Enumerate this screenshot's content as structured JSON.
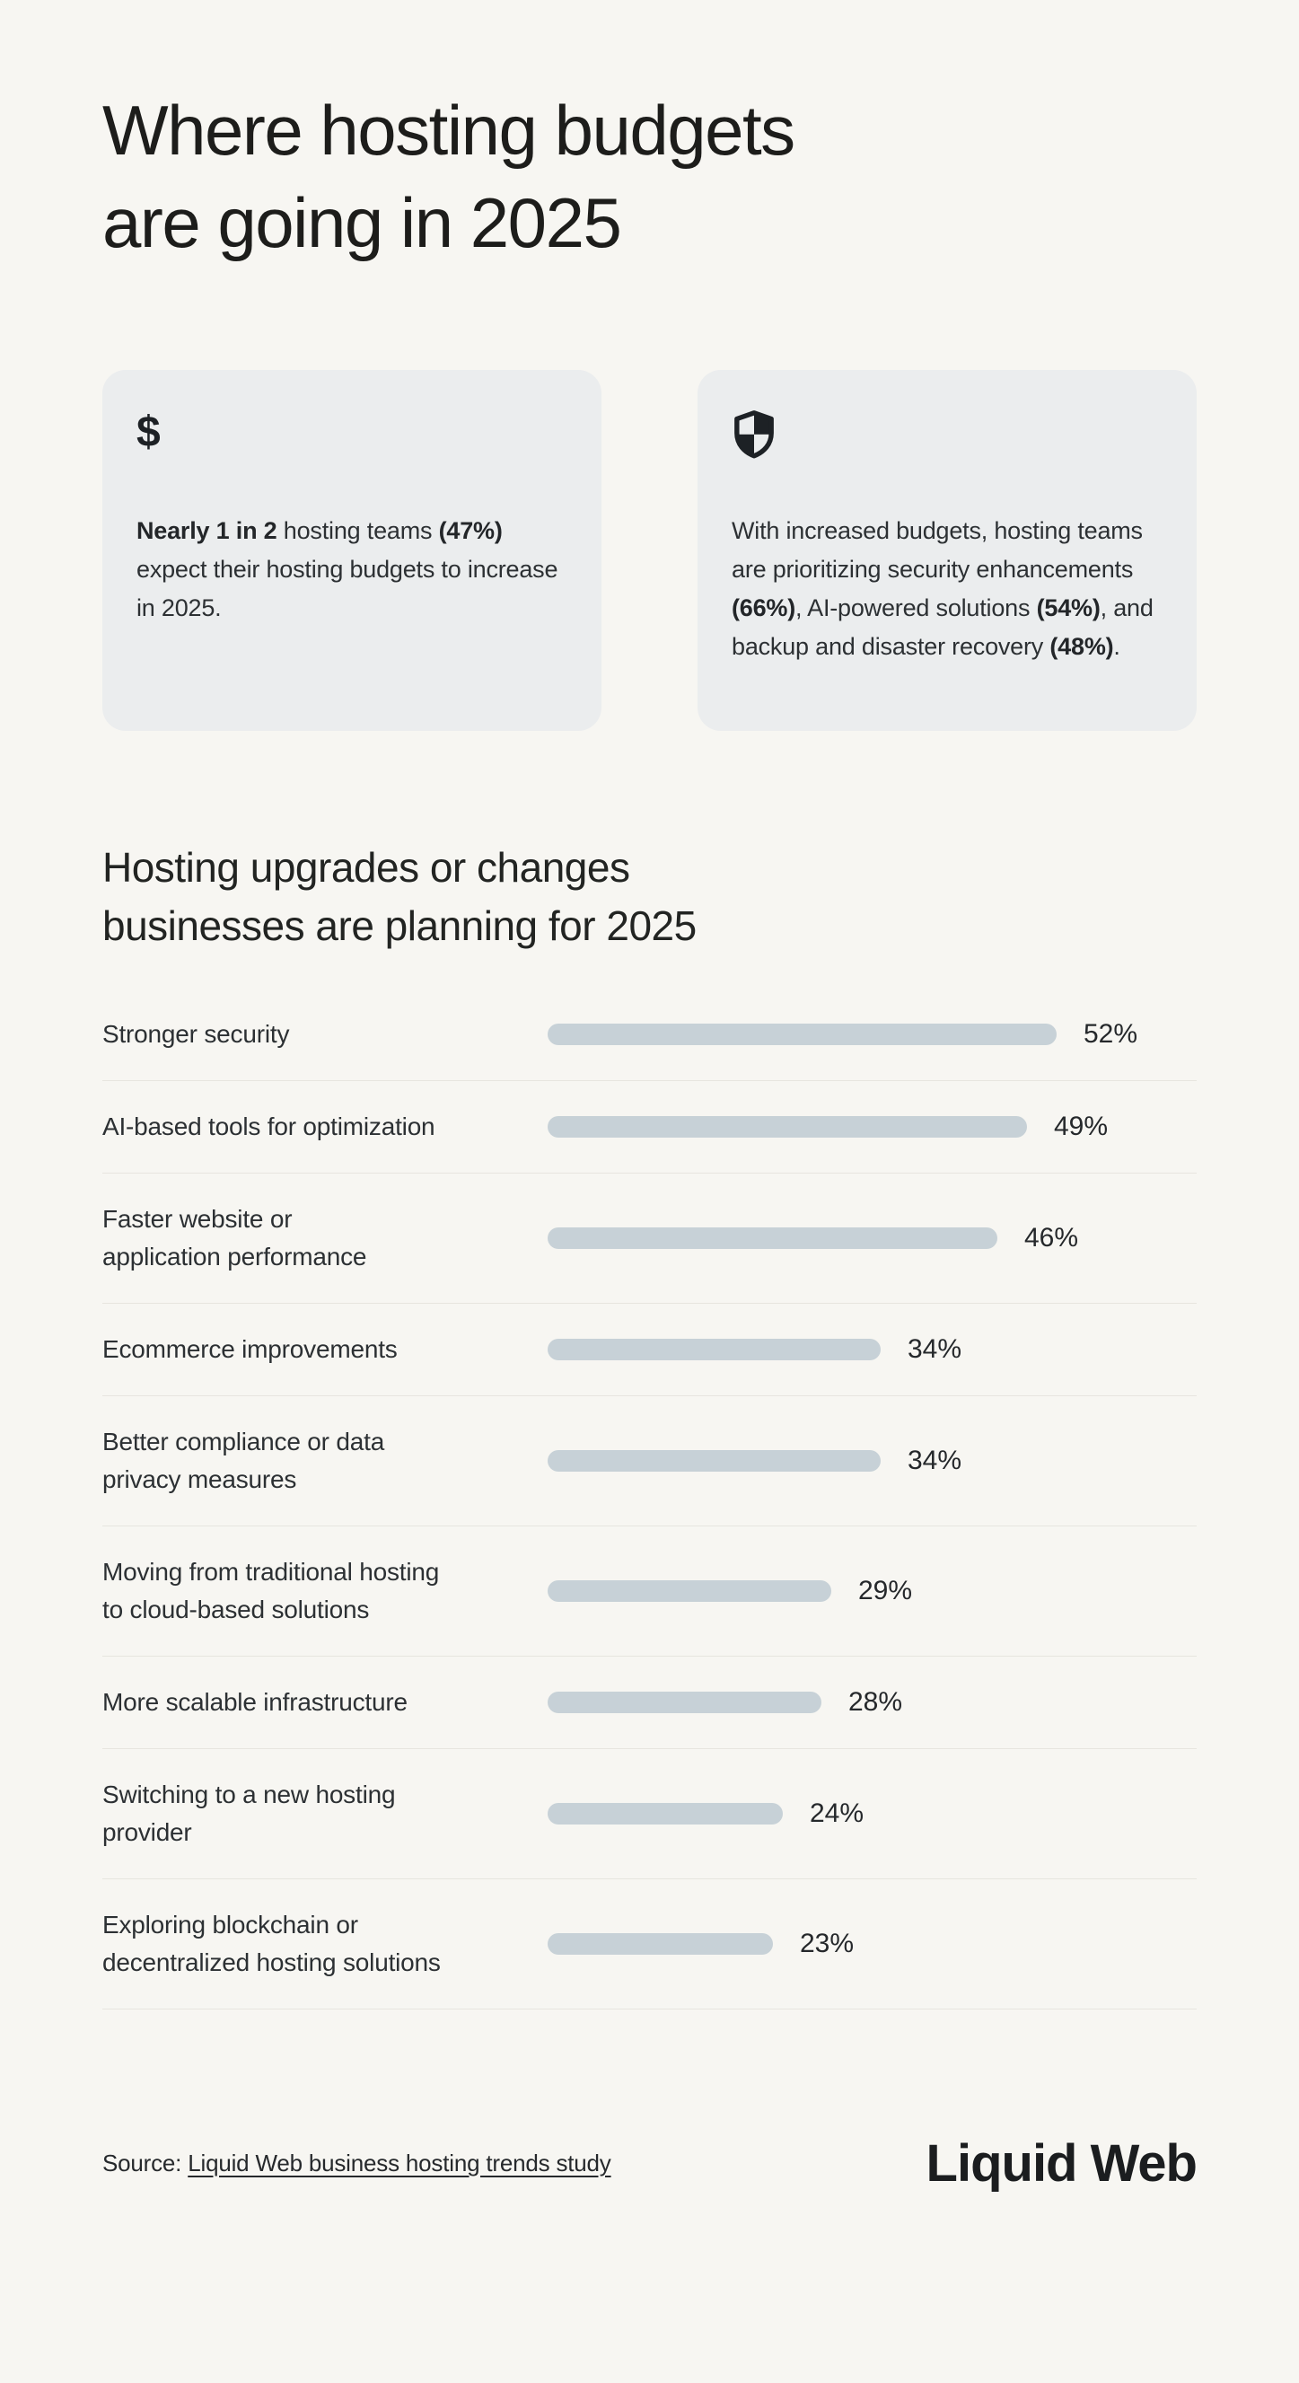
{
  "page": {
    "title_lines": [
      "Where hosting budgets",
      "are going in 2025"
    ]
  },
  "cards": [
    {
      "icon": "dollar-icon",
      "icon_glyph": "$",
      "segments": [
        {
          "t": "Nearly 1 in 2",
          "b": true
        },
        {
          "t": " hosting teams ",
          "b": false
        },
        {
          "t": "(47%)",
          "b": true
        },
        {
          "t": " expect their hosting budgets to increase in 2025.",
          "b": false
        }
      ]
    },
    {
      "icon": "shield-icon",
      "segments": [
        {
          "t": "With increased budgets, hosting teams are prioritizing security enhancements ",
          "b": false
        },
        {
          "t": "(66%)",
          "b": true
        },
        {
          "t": ", AI-powered solutions ",
          "b": false
        },
        {
          "t": "(54%)",
          "b": true
        },
        {
          "t": ", and backup and disaster recovery ",
          "b": false
        },
        {
          "t": "(48%)",
          "b": true
        },
        {
          "t": ".",
          "b": false
        }
      ]
    }
  ],
  "section": {
    "heading_lines": [
      "Hosting upgrades or changes",
      "businesses are planning for 2025"
    ]
  },
  "chart_data": {
    "type": "bar",
    "orientation": "horizontal",
    "title": "Hosting upgrades or changes businesses are planning for 2025",
    "categories": [
      "Stronger security",
      "AI-based tools for optimization",
      "Faster website or\napplication performance",
      "Ecommerce improvements",
      "Better compliance or data\nprivacy measures",
      "Moving from traditional hosting\nto cloud-based solutions",
      "More scalable infrastructure",
      "Switching to a new hosting\nprovider",
      "Exploring blockchain or\ndecentralized hosting solutions"
    ],
    "values": [
      52,
      49,
      46,
      34,
      34,
      29,
      28,
      24,
      23
    ],
    "unit": "%",
    "xlim": [
      0,
      52
    ],
    "grid": false,
    "legend": "none",
    "bar_color": "#c7d1d7"
  },
  "footer": {
    "source_prefix": "Source: ",
    "source_link": "Liquid Web business hosting trends study",
    "logo_text": "Liquid Web"
  },
  "colors": {
    "background": "#f7f6f2",
    "card_background": "#ebedee",
    "bar": "#c7d1d7",
    "divider": "#e7e5df",
    "text_primary": "#1d1d1b",
    "text_body": "#2c3033"
  }
}
